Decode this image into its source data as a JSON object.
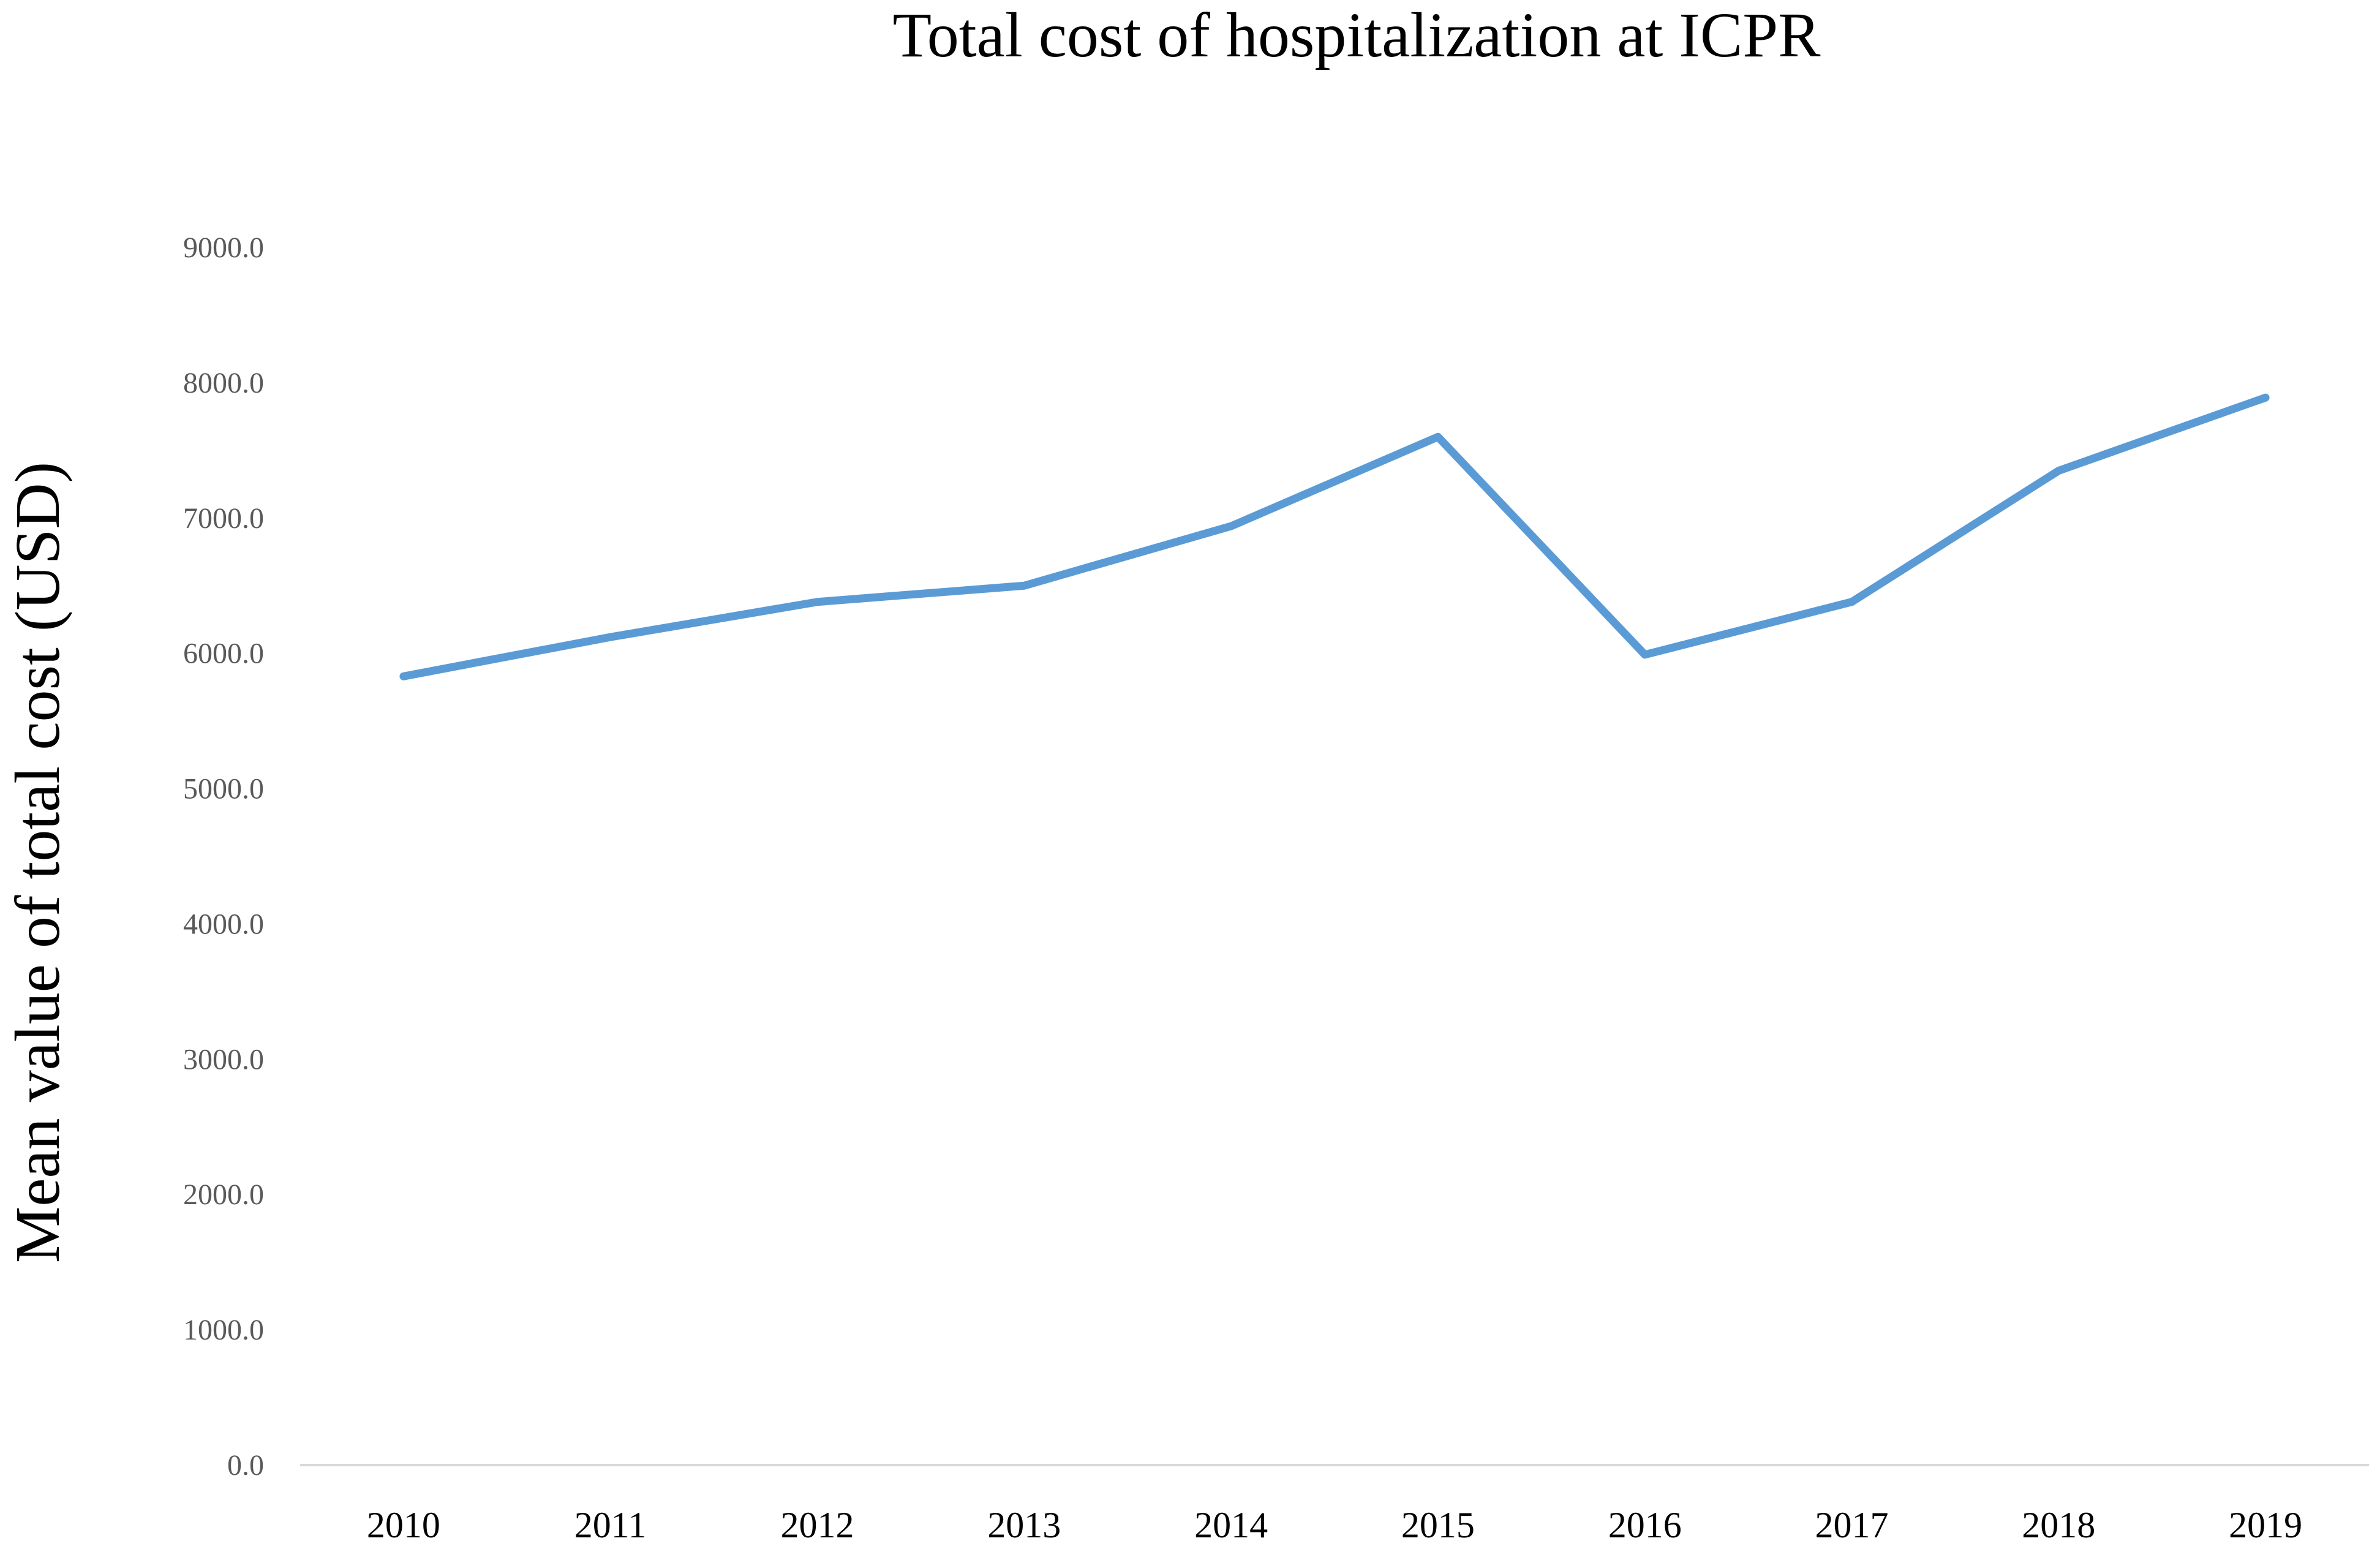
{
  "colors": {
    "line": "#5b9bd5",
    "axis": "#d9d9d9",
    "background": "#ffffff"
  },
  "chart_data": {
    "type": "line",
    "title": "Total cost of hospitalization at ICPR",
    "xlabel": "",
    "ylabel": "Mean value of total cost (USD)",
    "categories": [
      "2010",
      "2011",
      "2012",
      "2013",
      "2014",
      "2015",
      "2016",
      "2017",
      "2018",
      "2019"
    ],
    "series": [
      {
        "name": "Mean value of total cost (USD)",
        "values": [
          5830,
          6120,
          6380,
          6500,
          6940,
          7600,
          5990,
          6380,
          7350,
          7890
        ]
      }
    ],
    "ylim": [
      0,
      9000
    ],
    "yticks": [
      0,
      1000,
      2000,
      3000,
      4000,
      5000,
      6000,
      7000,
      8000,
      9000
    ],
    "ytick_labels": [
      "0.0",
      "1000.0",
      "2000.0",
      "3000.0",
      "4000.0",
      "5000.0",
      "6000.0",
      "7000.0",
      "8000.0",
      "9000.0"
    ],
    "grid": false,
    "legend": "none"
  }
}
